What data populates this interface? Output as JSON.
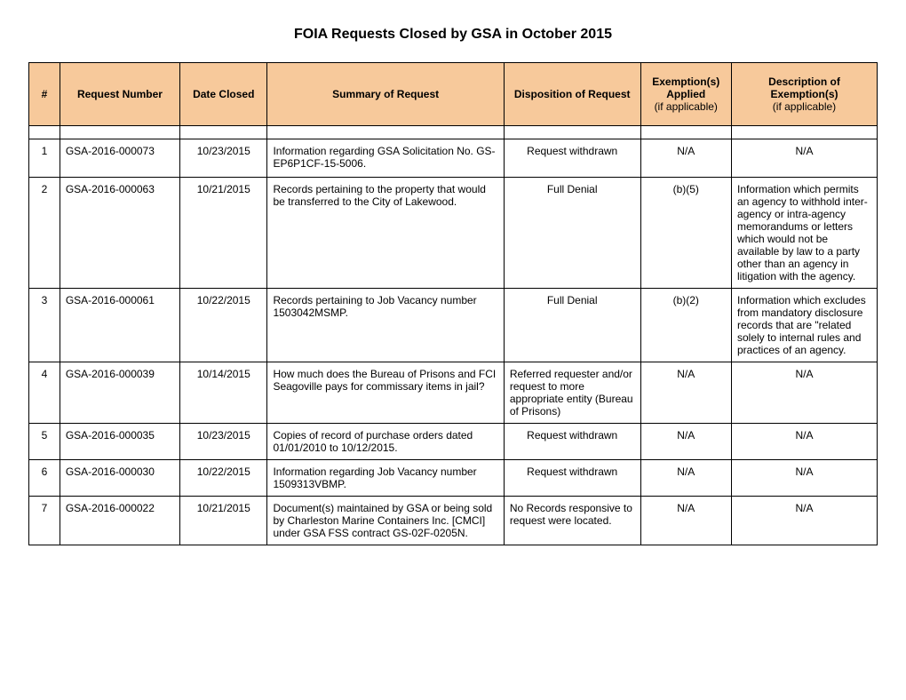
{
  "title": "FOIA Requests Closed by GSA in October 2015",
  "columns": {
    "num": "#",
    "request_number": "Request Number",
    "date_closed": "Date Closed",
    "summary": "Summary of Request",
    "disposition": "Disposition of Request",
    "exemptions": "Exemption(s) Applied",
    "exemptions_sub": "(if applicable)",
    "description": "Description of Exemption(s)",
    "description_sub": "(if applicable)"
  },
  "rows": [
    {
      "num": "1",
      "request_number": "GSA-2016-000073",
      "date_closed": "10/23/2015",
      "summary": "Information regarding GSA Solicitation No. GS-EP6P1CF-15-5006.",
      "disposition": "Request withdrawn",
      "exemptions": "N/A",
      "description": "N/A",
      "pad": true
    },
    {
      "num": "2",
      "request_number": "GSA-2016-000063",
      "date_closed": "10/21/2015",
      "summary": "Records pertaining to the property that would be transferred to the City of Lakewood.",
      "disposition": "Full Denial",
      "exemptions": "(b)(5)",
      "description": "Information which permits an agency to withhold inter-agency or intra-agency memorandums or letters which would not be available by law to a party other than an agency in litigation with the agency."
    },
    {
      "num": "3",
      "request_number": "GSA-2016-000061",
      "date_closed": "10/22/2015",
      "summary": "Records pertaining to Job Vacancy number 1503042MSMP.",
      "disposition": "Full Denial",
      "exemptions": "(b)(2)",
      "description": "Information which excludes from mandatory disclosure records that are \"related solely to internal rules and practices of an agency."
    },
    {
      "num": "4",
      "request_number": "GSA-2016-000039",
      "date_closed": "10/14/2015",
      "summary": "How much does the Bureau of Prisons and FCI Seagoville pays for commissary items in jail?",
      "disposition": "Referred requester and/or request to more appropriate entity (Bureau of Prisons)",
      "exemptions": "N/A",
      "description": "N/A",
      "pad": true
    },
    {
      "num": "5",
      "request_number": "GSA-2016-000035",
      "date_closed": "10/23/2015",
      "summary": "Copies of record of purchase orders dated 01/01/2010 to 10/12/2015.",
      "disposition": "Request withdrawn",
      "exemptions": "N/A",
      "description": "N/A"
    },
    {
      "num": "6",
      "request_number": "GSA-2016-000030",
      "date_closed": "10/22/2015",
      "summary": "Information regarding Job Vacancy number 1509313VBMP.",
      "disposition": "Request withdrawn",
      "exemptions": "N/A",
      "description": "N/A"
    },
    {
      "num": "7",
      "request_number": "GSA-2016-000022",
      "date_closed": "10/21/2015",
      "summary": "Document(s) maintained by GSA or being sold by Charleston Marine Containers Inc. [CMCI] under GSA FSS contract GS-02F-0205N.",
      "disposition": "No Records responsive to request were located.",
      "exemptions": "N/A",
      "description": "N/A",
      "pad": true
    }
  ]
}
